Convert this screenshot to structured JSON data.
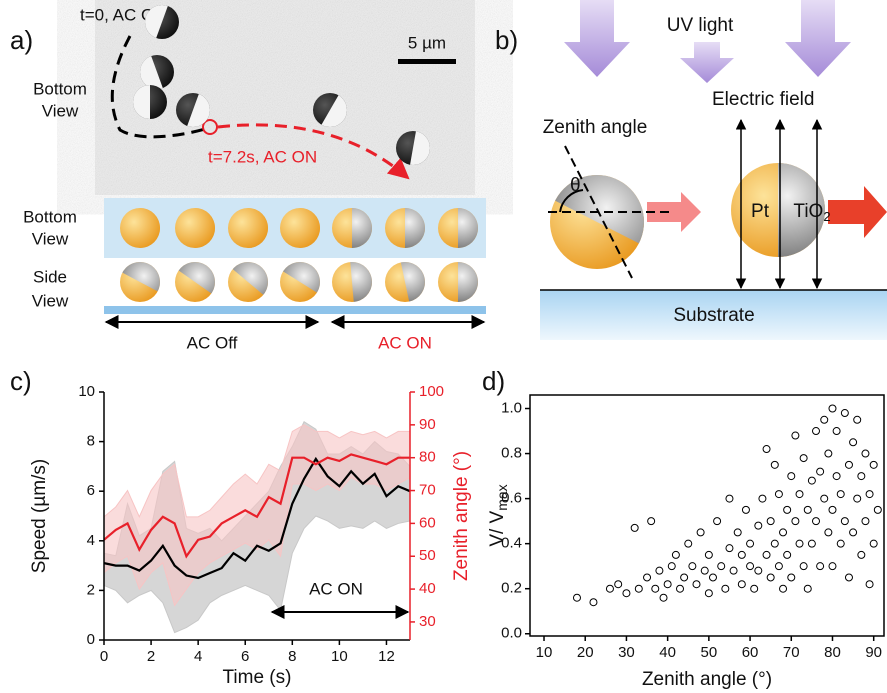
{
  "panel_a": {
    "label": "a)",
    "t0": "t=0, AC Off",
    "scale_bar": "5 µm",
    "bottom_view": [
      "Bottom",
      "View"
    ],
    "t1": "t=7.2s, AC ON",
    "row_labels": [
      [
        "Bottom",
        "View"
      ],
      [
        "Side",
        "View"
      ]
    ],
    "ac_off": "AC Off",
    "ac_on": "AC ON"
  },
  "panel_b": {
    "label": "b)",
    "uv": "UV light",
    "field": "Electric field",
    "zenith": "Zenith angle",
    "theta": "θ",
    "pt": "Pt",
    "tio": "TiO",
    "tio_sub": "2",
    "substrate": "Substrate"
  },
  "chart_data": [
    {
      "type": "line",
      "label": "c)",
      "xlabel": "Time (s)",
      "ylabel": "Speed (µm/s)",
      "y2label": "Zenith angle (°)",
      "annotation": "AC ON",
      "x": [
        0,
        0.5,
        1,
        1.5,
        2,
        2.5,
        3,
        3.5,
        4,
        4.5,
        5,
        5.5,
        6,
        6.5,
        7,
        7.5,
        8,
        8.5,
        9,
        9.5,
        10,
        10.5,
        11,
        11.5,
        12,
        12.5,
        13
      ],
      "xlim": [
        0,
        13
      ],
      "xticks": [
        0,
        2,
        4,
        6,
        8,
        10,
        12
      ],
      "ylim": [
        0,
        10
      ],
      "yticks": [
        0,
        2,
        4,
        6,
        8,
        10
      ],
      "y2lim": [
        24.5,
        100
      ],
      "y2ticks": [
        30,
        40,
        50,
        60,
        70,
        80,
        90,
        100
      ],
      "series": [
        {
          "color": "#000000",
          "band_color": "#c8c8c8",
          "values": [
            3.1,
            3.0,
            3.0,
            2.8,
            3.2,
            3.8,
            3.0,
            2.6,
            2.5,
            2.7,
            2.9,
            3.5,
            3.2,
            3.8,
            3.6,
            3.9,
            5.5,
            6.5,
            7.3,
            6.6,
            6.2,
            6.8,
            6.3,
            6.7,
            5.8,
            6.2,
            6.0
          ],
          "upper": [
            3.5,
            3.4,
            5.5,
            4.2,
            4.5,
            6.8,
            7.2,
            4.5,
            4.3,
            4.5,
            4.0,
            4.5,
            5.0,
            5.5,
            6.0,
            7.0,
            7.8,
            8.8,
            8.5,
            7.5,
            7.5,
            7.8,
            7.5,
            8.0,
            7.6,
            7.5,
            7.0
          ],
          "lower": [
            2.2,
            2.0,
            1.5,
            1.8,
            2.0,
            1.5,
            0.3,
            0.5,
            0.8,
            1.5,
            1.8,
            2.0,
            2.2,
            2.0,
            1.8,
            1.2,
            3.5,
            4.5,
            5.0,
            4.8,
            4.5,
            4.6,
            4.5,
            4.8,
            4.5,
            4.7,
            4.8
          ]
        },
        {
          "color": "#e8202a",
          "band_color": "#f7c4c4",
          "axis": "y2",
          "values": [
            55,
            58,
            60,
            52,
            58,
            62,
            60,
            50,
            55,
            56,
            60,
            62,
            64,
            62,
            68,
            66,
            80,
            80,
            78,
            80,
            79,
            81,
            80,
            79,
            78,
            80,
            80
          ],
          "upper": [
            62,
            65,
            70,
            62,
            70,
            75,
            78,
            62,
            62,
            64,
            68,
            72,
            75,
            72,
            78,
            76,
            88,
            90,
            88,
            88,
            86,
            88,
            87,
            88,
            86,
            88,
            88
          ],
          "lower": [
            45,
            48,
            50,
            40,
            45,
            48,
            35,
            40,
            45,
            48,
            50,
            52,
            54,
            52,
            55,
            50,
            72,
            72,
            70,
            72,
            70,
            74,
            72,
            72,
            70,
            72,
            74
          ]
        }
      ]
    },
    {
      "type": "scatter",
      "label": "d)",
      "xlabel": "Zenith angle (°)",
      "ylabel": "V/ V",
      "ylabel_sub": "max",
      "marker_color": "#000000",
      "x": [
        18,
        22,
        26,
        28,
        30,
        32,
        33,
        35,
        36,
        37,
        38,
        39,
        40,
        41,
        42,
        43,
        44,
        45,
        46,
        47,
        48,
        49,
        50,
        50,
        51,
        52,
        53,
        54,
        55,
        55,
        56,
        57,
        58,
        58,
        59,
        60,
        60,
        61,
        62,
        62,
        63,
        64,
        64,
        65,
        65,
        66,
        66,
        67,
        67,
        68,
        68,
        69,
        69,
        70,
        70,
        71,
        71,
        72,
        72,
        73,
        73,
        74,
        74,
        75,
        75,
        76,
        76,
        77,
        77,
        78,
        78,
        79,
        79,
        80,
        80,
        80,
        81,
        81,
        82,
        82,
        83,
        83,
        84,
        84,
        85,
        85,
        86,
        86,
        87,
        87,
        88,
        88,
        89,
        89,
        90,
        90,
        91
      ],
      "values": [
        0.16,
        0.14,
        0.2,
        0.22,
        0.18,
        0.47,
        0.2,
        0.25,
        0.5,
        0.2,
        0.28,
        0.16,
        0.22,
        0.3,
        0.35,
        0.2,
        0.25,
        0.4,
        0.3,
        0.22,
        0.45,
        0.28,
        0.18,
        0.35,
        0.25,
        0.5,
        0.3,
        0.2,
        0.38,
        0.6,
        0.28,
        0.45,
        0.22,
        0.35,
        0.55,
        0.3,
        0.4,
        0.2,
        0.48,
        0.28,
        0.6,
        0.35,
        0.82,
        0.25,
        0.5,
        0.4,
        0.75,
        0.3,
        0.62,
        0.45,
        0.2,
        0.55,
        0.35,
        0.7,
        0.25,
        0.5,
        0.88,
        0.4,
        0.62,
        0.3,
        0.78,
        0.55,
        0.2,
        0.68,
        0.4,
        0.9,
        0.5,
        0.3,
        0.72,
        0.6,
        0.95,
        0.45,
        0.8,
        1.0,
        0.55,
        0.3,
        0.7,
        0.9,
        0.4,
        0.62,
        0.98,
        0.5,
        0.75,
        0.25,
        0.85,
        0.45,
        0.6,
        0.95,
        0.35,
        0.7,
        0.8,
        0.5,
        0.62,
        0.22,
        0.75,
        0.4,
        0.55
      ],
      "xlim": [
        6.6,
        92.5
      ],
      "xticks": [
        10,
        20,
        30,
        40,
        50,
        60,
        70,
        80,
        90
      ],
      "ylim": [
        -0.01,
        1.06
      ],
      "yticks": [
        {
          "value": 0,
          "label": "0.0"
        },
        0.2,
        0.4,
        0.6,
        0.8,
        {
          "value": 1,
          "label": "1.0"
        }
      ]
    }
  ]
}
